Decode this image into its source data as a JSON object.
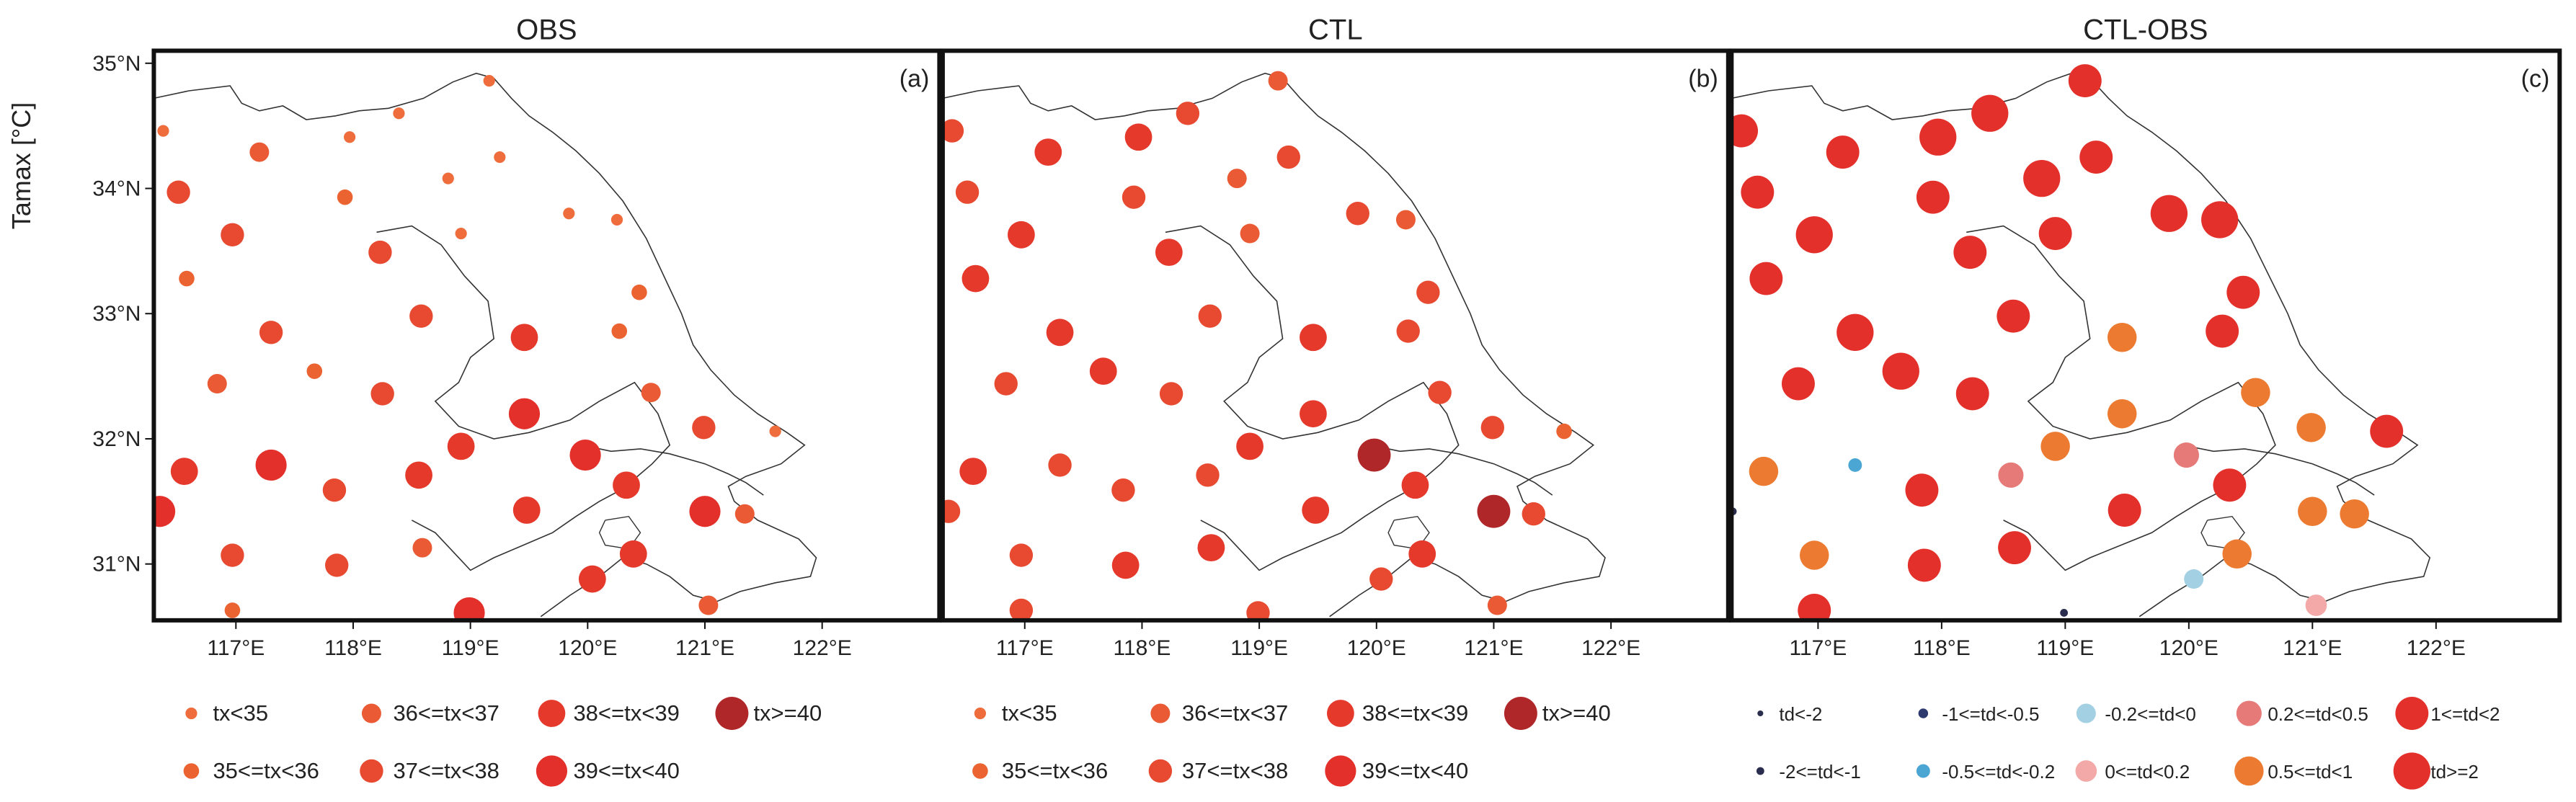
{
  "figure": {
    "ylabel": "Tamax [°C]"
  },
  "chart_data": [
    {
      "type": "scatter",
      "title": "OBS",
      "panel_label": "(a)",
      "ylabel": "Tamax [°C]",
      "x_ticks": [
        "117°E",
        "118°E",
        "119°E",
        "120°E",
        "121°E",
        "122°E"
      ],
      "y_ticks": [
        "31°N",
        "32°N",
        "33°N",
        "34°N",
        "35°N"
      ],
      "xlim": [
        116.3,
        123.0
      ],
      "ylim": [
        30.55,
        35.1
      ],
      "legend": [
        {
          "key": "c1",
          "label": "tx<35",
          "color": "#ef6d3c",
          "size": 6
        },
        {
          "key": "c3",
          "label": "36<=tx<37",
          "color": "#ea5a34",
          "size": 10
        },
        {
          "key": "c5",
          "label": "38<=tx<39",
          "color": "#e5392c",
          "size": 14
        },
        {
          "key": "c7",
          "label": "tx>=40",
          "color": "#b0272a",
          "size": 17
        },
        {
          "key": "c2",
          "label": "35<=tx<36",
          "color": "#ec6332",
          "size": 8
        },
        {
          "key": "c4",
          "label": "37<=tx<38",
          "color": "#e74a30",
          "size": 12
        },
        {
          "key": "c6",
          "label": "39<=tx<40",
          "color": "#e3302b",
          "size": 16
        }
      ],
      "stations": [
        {
          "x": 116.38,
          "y": 34.46,
          "c": "c1"
        },
        {
          "x": 116.51,
          "y": 33.97,
          "c": "c4"
        },
        {
          "x": 116.58,
          "y": 33.28,
          "c": "c2"
        },
        {
          "x": 116.56,
          "y": 31.74,
          "c": "c5"
        },
        {
          "x": 116.35,
          "y": 31.42,
          "c": "c6"
        },
        {
          "x": 116.84,
          "y": 32.44,
          "c": "c3"
        },
        {
          "x": 116.97,
          "y": 33.63,
          "c": "c4"
        },
        {
          "x": 116.97,
          "y": 31.07,
          "c": "c4"
        },
        {
          "x": 116.97,
          "y": 30.63,
          "c": "c2"
        },
        {
          "x": 117.2,
          "y": 34.29,
          "c": "c3"
        },
        {
          "x": 117.3,
          "y": 32.85,
          "c": "c4"
        },
        {
          "x": 117.3,
          "y": 31.79,
          "c": "c6"
        },
        {
          "x": 117.67,
          "y": 32.54,
          "c": "c2"
        },
        {
          "x": 117.84,
          "y": 31.59,
          "c": "c4"
        },
        {
          "x": 117.86,
          "y": 30.99,
          "c": "c4"
        },
        {
          "x": 117.93,
          "y": 33.93,
          "c": "c2"
        },
        {
          "x": 117.97,
          "y": 34.41,
          "c": "c1"
        },
        {
          "x": 118.23,
          "y": 33.49,
          "c": "c4"
        },
        {
          "x": 118.25,
          "y": 32.36,
          "c": "c4"
        },
        {
          "x": 118.39,
          "y": 34.6,
          "c": "c1"
        },
        {
          "x": 118.58,
          "y": 32.98,
          "c": "c4"
        },
        {
          "x": 118.56,
          "y": 31.71,
          "c": "c5"
        },
        {
          "x": 118.59,
          "y": 31.13,
          "c": "c3"
        },
        {
          "x": 118.81,
          "y": 34.08,
          "c": "c1"
        },
        {
          "x": 118.92,
          "y": 33.64,
          "c": "c1"
        },
        {
          "x": 118.92,
          "y": 31.94,
          "c": "c5"
        },
        {
          "x": 118.99,
          "y": 30.61,
          "c": "c6"
        },
        {
          "x": 119.16,
          "y": 34.86,
          "c": "c1"
        },
        {
          "x": 119.25,
          "y": 34.25,
          "c": "c1"
        },
        {
          "x": 119.46,
          "y": 32.81,
          "c": "c5"
        },
        {
          "x": 119.46,
          "y": 32.2,
          "c": "c6"
        },
        {
          "x": 119.48,
          "y": 31.43,
          "c": "c5"
        },
        {
          "x": 119.84,
          "y": 33.8,
          "c": "c1"
        },
        {
          "x": 119.98,
          "y": 31.87,
          "c": "c6"
        },
        {
          "x": 120.04,
          "y": 30.88,
          "c": "c5"
        },
        {
          "x": 120.25,
          "y": 33.75,
          "c": "c1"
        },
        {
          "x": 120.27,
          "y": 32.86,
          "c": "c2"
        },
        {
          "x": 120.33,
          "y": 31.63,
          "c": "c5"
        },
        {
          "x": 120.39,
          "y": 31.08,
          "c": "c5"
        },
        {
          "x": 120.44,
          "y": 33.17,
          "c": "c2"
        },
        {
          "x": 120.54,
          "y": 32.37,
          "c": "c3"
        },
        {
          "x": 120.99,
          "y": 32.09,
          "c": "c4"
        },
        {
          "x": 121.0,
          "y": 31.42,
          "c": "c6"
        },
        {
          "x": 121.03,
          "y": 30.67,
          "c": "c3"
        },
        {
          "x": 121.34,
          "y": 31.4,
          "c": "c3"
        },
        {
          "x": 121.6,
          "y": 32.06,
          "c": "c1"
        }
      ]
    },
    {
      "type": "scatter",
      "title": "CTL",
      "panel_label": "(b)",
      "x_ticks": [
        "117°E",
        "118°E",
        "119°E",
        "120°E",
        "121°E",
        "122°E"
      ],
      "y_ticks": [
        "31°N",
        "32°N",
        "33°N",
        "34°N",
        "35°N"
      ],
      "xlim": [
        116.3,
        123.0
      ],
      "ylim": [
        30.55,
        35.1
      ],
      "legend": [
        {
          "key": "c1",
          "label": "tx<35",
          "color": "#ef6d3c",
          "size": 6
        },
        {
          "key": "c3",
          "label": "36<=tx<37",
          "color": "#ea5a34",
          "size": 10
        },
        {
          "key": "c5",
          "label": "38<=tx<39",
          "color": "#e5392c",
          "size": 14
        },
        {
          "key": "c7",
          "label": "tx>=40",
          "color": "#b0272a",
          "size": 17
        },
        {
          "key": "c2",
          "label": "35<=tx<36",
          "color": "#ec6332",
          "size": 8
        },
        {
          "key": "c4",
          "label": "37<=tx<38",
          "color": "#e74a30",
          "size": 12
        },
        {
          "key": "c6",
          "label": "39<=tx<40",
          "color": "#e3302b",
          "size": 16
        }
      ],
      "stations": [
        {
          "x": 116.38,
          "y": 34.46,
          "c": "c4"
        },
        {
          "x": 116.51,
          "y": 33.97,
          "c": "c4"
        },
        {
          "x": 116.58,
          "y": 33.28,
          "c": "c5"
        },
        {
          "x": 116.56,
          "y": 31.74,
          "c": "c5"
        },
        {
          "x": 116.35,
          "y": 31.42,
          "c": "c4"
        },
        {
          "x": 116.84,
          "y": 32.44,
          "c": "c4"
        },
        {
          "x": 116.97,
          "y": 33.63,
          "c": "c5"
        },
        {
          "x": 116.97,
          "y": 31.07,
          "c": "c4"
        },
        {
          "x": 116.97,
          "y": 30.63,
          "c": "c4"
        },
        {
          "x": 117.2,
          "y": 34.29,
          "c": "c5"
        },
        {
          "x": 117.3,
          "y": 32.85,
          "c": "c5"
        },
        {
          "x": 117.3,
          "y": 31.79,
          "c": "c4"
        },
        {
          "x": 117.67,
          "y": 32.54,
          "c": "c5"
        },
        {
          "x": 117.84,
          "y": 31.59,
          "c": "c4"
        },
        {
          "x": 117.86,
          "y": 30.99,
          "c": "c5"
        },
        {
          "x": 117.93,
          "y": 33.93,
          "c": "c4"
        },
        {
          "x": 117.97,
          "y": 34.41,
          "c": "c5"
        },
        {
          "x": 118.23,
          "y": 33.49,
          "c": "c5"
        },
        {
          "x": 118.25,
          "y": 32.36,
          "c": "c4"
        },
        {
          "x": 118.39,
          "y": 34.6,
          "c": "c4"
        },
        {
          "x": 118.58,
          "y": 32.98,
          "c": "c4"
        },
        {
          "x": 118.56,
          "y": 31.71,
          "c": "c4"
        },
        {
          "x": 118.59,
          "y": 31.13,
          "c": "c5"
        },
        {
          "x": 118.81,
          "y": 34.08,
          "c": "c3"
        },
        {
          "x": 118.92,
          "y": 33.64,
          "c": "c3"
        },
        {
          "x": 118.92,
          "y": 31.94,
          "c": "c5"
        },
        {
          "x": 118.99,
          "y": 30.61,
          "c": "c4"
        },
        {
          "x": 119.16,
          "y": 34.86,
          "c": "c3"
        },
        {
          "x": 119.25,
          "y": 34.25,
          "c": "c4"
        },
        {
          "x": 119.46,
          "y": 32.81,
          "c": "c5"
        },
        {
          "x": 119.46,
          "y": 32.2,
          "c": "c5"
        },
        {
          "x": 119.48,
          "y": 31.43,
          "c": "c5"
        },
        {
          "x": 119.84,
          "y": 33.8,
          "c": "c4"
        },
        {
          "x": 119.98,
          "y": 31.87,
          "c": "c7"
        },
        {
          "x": 120.04,
          "y": 30.88,
          "c": "c4"
        },
        {
          "x": 120.25,
          "y": 33.75,
          "c": "c3"
        },
        {
          "x": 120.27,
          "y": 32.86,
          "c": "c4"
        },
        {
          "x": 120.33,
          "y": 31.63,
          "c": "c5"
        },
        {
          "x": 120.39,
          "y": 31.08,
          "c": "c5"
        },
        {
          "x": 120.44,
          "y": 33.17,
          "c": "c4"
        },
        {
          "x": 120.54,
          "y": 32.37,
          "c": "c4"
        },
        {
          "x": 120.99,
          "y": 32.09,
          "c": "c4"
        },
        {
          "x": 121.0,
          "y": 31.42,
          "c": "c7"
        },
        {
          "x": 121.03,
          "y": 30.67,
          "c": "c3"
        },
        {
          "x": 121.34,
          "y": 31.4,
          "c": "c4"
        },
        {
          "x": 121.6,
          "y": 32.06,
          "c": "c2"
        }
      ]
    },
    {
      "type": "scatter",
      "title": "CTL-OBS",
      "panel_label": "(c)",
      "x_ticks": [
        "117°E",
        "118°E",
        "119°E",
        "120°E",
        "121°E",
        "122°E"
      ],
      "y_ticks": [
        "31°N",
        "32°N",
        "33°N",
        "34°N",
        "35°N"
      ],
      "xlim": [
        116.3,
        123.0
      ],
      "ylim": [
        30.55,
        35.1
      ],
      "legend": [
        {
          "key": "d1",
          "label": "td<-2",
          "color": "#2b2d4f",
          "size": 3
        },
        {
          "key": "d3",
          "label": "-1<=td<-0.5",
          "color": "#2e3a6e",
          "size": 5
        },
        {
          "key": "d5",
          "label": "-0.2<=td<0",
          "color": "#a3d0e3",
          "size": 10
        },
        {
          "key": "d7",
          "label": "0.2<=td<0.5",
          "color": "#e67a78",
          "size": 13
        },
        {
          "key": "d9",
          "label": "1<=td<2",
          "color": "#e3302b",
          "size": 17
        },
        {
          "key": "d2",
          "label": "-2<=td<-1",
          "color": "#2b2d4f",
          "size": 4
        },
        {
          "key": "d4",
          "label": "-0.5<=td<-0.2",
          "color": "#4ba6d3",
          "size": 7
        },
        {
          "key": "d6",
          "label": "0<=td<0.2",
          "color": "#f2a9a8",
          "size": 11
        },
        {
          "key": "d8",
          "label": "0.5<=td<1",
          "color": "#ec7a30",
          "size": 15
        },
        {
          "key": "d10",
          "label": "td>=2",
          "color": "#e3302b",
          "size": 19
        }
      ],
      "stations": [
        {
          "x": 116.38,
          "y": 34.46,
          "c": "d9"
        },
        {
          "x": 116.51,
          "y": 33.97,
          "c": "d9"
        },
        {
          "x": 116.58,
          "y": 33.28,
          "c": "d9"
        },
        {
          "x": 116.56,
          "y": 31.74,
          "c": "d8"
        },
        {
          "x": 116.31,
          "y": 31.42,
          "c": "d2"
        },
        {
          "x": 116.84,
          "y": 32.44,
          "c": "d9"
        },
        {
          "x": 116.97,
          "y": 33.63,
          "c": "d10"
        },
        {
          "x": 116.97,
          "y": 31.07,
          "c": "d8"
        },
        {
          "x": 116.97,
          "y": 30.63,
          "c": "d9"
        },
        {
          "x": 117.2,
          "y": 34.29,
          "c": "d9"
        },
        {
          "x": 117.3,
          "y": 32.85,
          "c": "d10"
        },
        {
          "x": 117.3,
          "y": 31.79,
          "c": "d4"
        },
        {
          "x": 117.67,
          "y": 32.54,
          "c": "d10"
        },
        {
          "x": 117.84,
          "y": 31.59,
          "c": "d9"
        },
        {
          "x": 117.86,
          "y": 30.99,
          "c": "d9"
        },
        {
          "x": 117.93,
          "y": 33.93,
          "c": "d9"
        },
        {
          "x": 117.97,
          "y": 34.41,
          "c": "d10"
        },
        {
          "x": 118.23,
          "y": 33.49,
          "c": "d9"
        },
        {
          "x": 118.25,
          "y": 32.36,
          "c": "d9"
        },
        {
          "x": 118.39,
          "y": 34.6,
          "c": "d10"
        },
        {
          "x": 118.58,
          "y": 32.98,
          "c": "d9"
        },
        {
          "x": 118.56,
          "y": 31.71,
          "c": "d7"
        },
        {
          "x": 118.59,
          "y": 31.13,
          "c": "d9"
        },
        {
          "x": 118.81,
          "y": 34.08,
          "c": "d10"
        },
        {
          "x": 118.92,
          "y": 33.64,
          "c": "d9"
        },
        {
          "x": 118.92,
          "y": 31.94,
          "c": "d8"
        },
        {
          "x": 118.99,
          "y": 30.61,
          "c": "d2"
        },
        {
          "x": 119.16,
          "y": 34.86,
          "c": "d9"
        },
        {
          "x": 119.25,
          "y": 34.25,
          "c": "d9"
        },
        {
          "x": 119.46,
          "y": 32.81,
          "c": "d8"
        },
        {
          "x": 119.46,
          "y": 32.2,
          "c": "d8"
        },
        {
          "x": 119.48,
          "y": 31.43,
          "c": "d9"
        },
        {
          "x": 119.84,
          "y": 33.8,
          "c": "d10"
        },
        {
          "x": 119.98,
          "y": 31.87,
          "c": "d7"
        },
        {
          "x": 120.04,
          "y": 30.88,
          "c": "d5"
        },
        {
          "x": 120.25,
          "y": 33.75,
          "c": "d10"
        },
        {
          "x": 120.27,
          "y": 32.86,
          "c": "d9"
        },
        {
          "x": 120.33,
          "y": 31.63,
          "c": "d9"
        },
        {
          "x": 120.39,
          "y": 31.08,
          "c": "d8"
        },
        {
          "x": 120.44,
          "y": 33.17,
          "c": "d9"
        },
        {
          "x": 120.54,
          "y": 32.37,
          "c": "d8"
        },
        {
          "x": 120.99,
          "y": 32.09,
          "c": "d8"
        },
        {
          "x": 121.0,
          "y": 31.42,
          "c": "d8"
        },
        {
          "x": 121.03,
          "y": 30.67,
          "c": "d6"
        },
        {
          "x": 121.34,
          "y": 31.4,
          "c": "d8"
        },
        {
          "x": 121.6,
          "y": 32.06,
          "c": "d9"
        }
      ]
    }
  ]
}
